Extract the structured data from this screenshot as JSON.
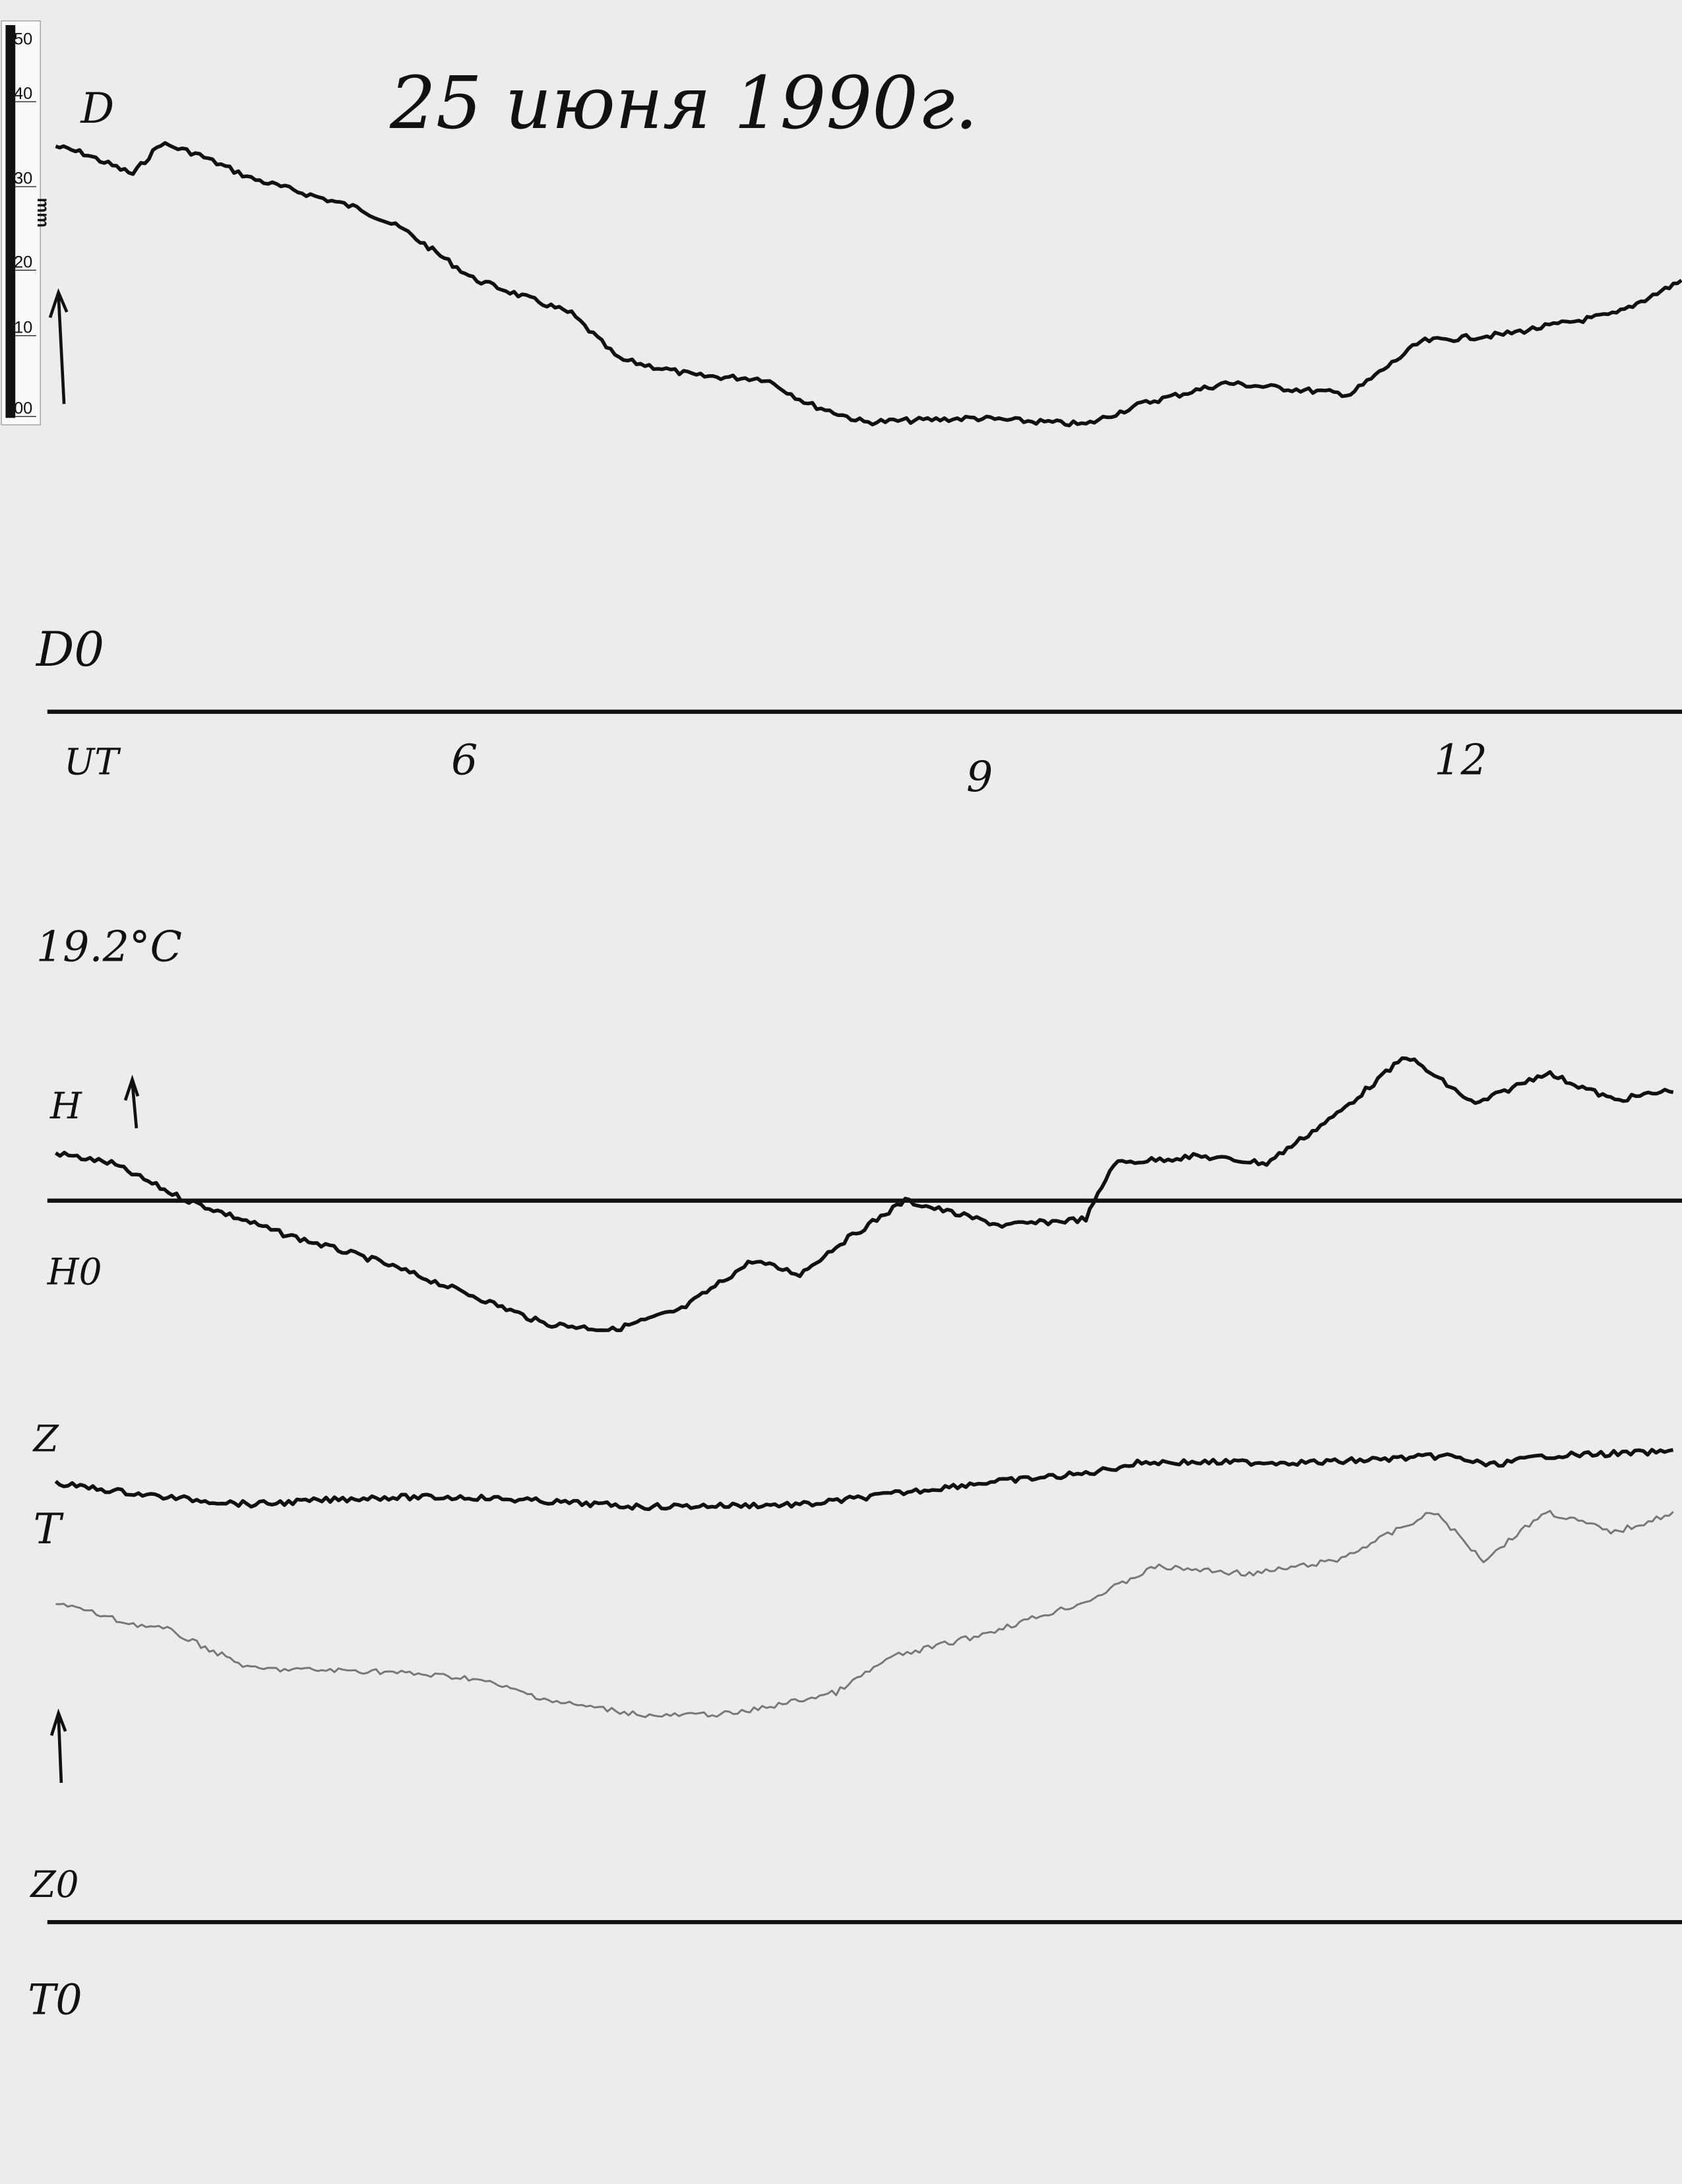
{
  "title": "25 июня 1990г.",
  "annotations": {
    "temperature": "19.2°C"
  },
  "ruler": {
    "ticks": [
      "50",
      "40",
      "30",
      "20",
      "10",
      "00"
    ],
    "unit": "mm"
  },
  "chart_data": {
    "type": "line",
    "title": "25 июня 1990г.",
    "xlabel": "UT",
    "x_ticks": [
      {
        "value": 6,
        "label": "6"
      },
      {
        "value": 9,
        "label": "9"
      },
      {
        "value": 12,
        "label": "12"
      }
    ],
    "xlim": [
      3.5,
      13.4
    ],
    "y_unit": "mm",
    "grid": false,
    "series": [
      {
        "name": "D",
        "baseline_label": "D0",
        "color": "#111111",
        "x": [
          3.5,
          3.67,
          3.97,
          4.14,
          4.35,
          4.69,
          5.36,
          5.62,
          6.04,
          6.64,
          6.93,
          7.4,
          7.82,
          8.08,
          8.42,
          9.09,
          9.77,
          10.11,
          10.62,
          11.38,
          11.81,
          12.31,
          13.0,
          13.42
        ],
        "y": [
          95.3,
          94.1,
          90.6,
          95.8,
          94.1,
          89.9,
          84.7,
          81.2,
          73.0,
          67.1,
          59.4,
          56.6,
          56.1,
          51.9,
          48.8,
          49.5,
          48.4,
          51.9,
          55.4,
          53.5,
          62.4,
          63.6,
          67.1,
          73.0
        ]
      },
      {
        "name": "H",
        "baseline_label": "H0",
        "color": "#111111",
        "x": [
          3.5,
          3.84,
          4.26,
          4.86,
          5.45,
          6.04,
          6.47,
          6.89,
          7.31,
          7.74,
          8.03,
          8.25,
          8.67,
          9.26,
          9.77,
          9.94,
          10.45,
          10.87,
          11.3,
          11.72,
          12.14,
          12.57,
          12.99,
          13.37
        ],
        "y": [
          8.0,
          6.3,
          0.5,
          -5.4,
          -10.1,
          -16.0,
          -20.7,
          -21.8,
          -18.3,
          -10.1,
          -12.4,
          -7.7,
          0,
          -4.2,
          -3.1,
          6.3,
          7.5,
          6.3,
          14.6,
          24.4,
          16.2,
          21.6,
          16.9,
          18.8
        ]
      },
      {
        "name": "Z",
        "baseline_label": "Z0",
        "color": "#111111",
        "x": [
          3.5,
          4.18,
          4.69,
          5.45,
          6.04,
          7.06,
          8.08,
          9.09,
          9.77,
          10.11,
          11.21,
          11.97,
          12.23,
          12.57,
          13.37
        ],
        "y": [
          73.9,
          71.6,
          70.4,
          71.6,
          71.6,
          70.0,
          70.4,
          73.9,
          75.6,
          77.5,
          77.5,
          78.6,
          77.0,
          78.6,
          79.3
        ]
      },
      {
        "name": "T",
        "baseline_label": "T0",
        "color": "#777777",
        "x": [
          3.5,
          3.92,
          4.18,
          4.69,
          5.45,
          6.04,
          6.55,
          7.14,
          7.65,
          8.25,
          8.58,
          9.09,
          9.77,
          10.19,
          10.79,
          11.3,
          11.89,
          12.19,
          12.57,
          12.99,
          13.37
        ],
        "y": [
          54.0,
          50.5,
          49.3,
          42.7,
          42.3,
          41.1,
          37.1,
          34.7,
          35.2,
          38.7,
          44.6,
          48.1,
          54.0,
          59.9,
          58.7,
          61.0,
          69.2,
          61.0,
          69.2,
          65.7,
          69.2
        ]
      }
    ]
  }
}
